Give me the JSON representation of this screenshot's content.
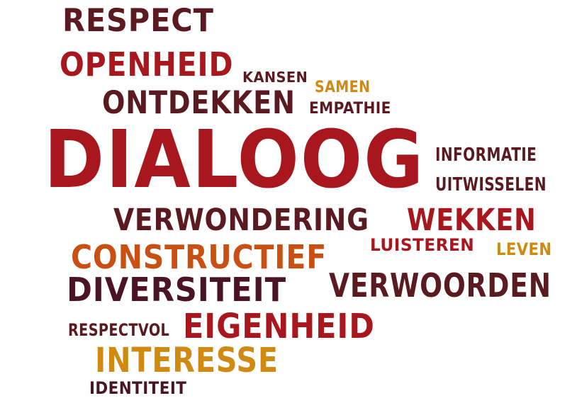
{
  "palette": {
    "dark": "#5a1a1f",
    "red": "#a8171d",
    "orange": "#c94f12",
    "gold": "#cf8a12",
    "plum": "#4a1426"
  },
  "words": [
    {
      "id": "respect",
      "text": "RESPECT",
      "color": "dark"
    },
    {
      "id": "openheid",
      "text": "OPENHEID",
      "color": "red"
    },
    {
      "id": "kansen",
      "text": "KANSEN",
      "color": "dark"
    },
    {
      "id": "samen",
      "text": "SAMEN",
      "color": "gold"
    },
    {
      "id": "ontdekken",
      "text": "ONTDEKKEN",
      "color": "dark"
    },
    {
      "id": "empathie",
      "text": "EMPATHIE",
      "color": "dark"
    },
    {
      "id": "dialoog",
      "text": "DIALOOG",
      "color": "red"
    },
    {
      "id": "informatie",
      "text": "INFORMATIE",
      "color": "dark"
    },
    {
      "id": "uitwisselen",
      "text": "UITWISSELEN",
      "color": "dark"
    },
    {
      "id": "verwondering",
      "text": "VERWONDERING",
      "color": "dark"
    },
    {
      "id": "wekken",
      "text": "WEKKEN",
      "color": "red"
    },
    {
      "id": "constructief",
      "text": "CONSTRUCTIEF",
      "color": "orange"
    },
    {
      "id": "luisteren",
      "text": "LUISTEREN",
      "color": "red"
    },
    {
      "id": "leven",
      "text": "LEVEN",
      "color": "gold"
    },
    {
      "id": "diversiteit",
      "text": "DIVERSITEIT",
      "color": "plum"
    },
    {
      "id": "verwoorden",
      "text": "VERWOORDEN",
      "color": "dark"
    },
    {
      "id": "respectvol",
      "text": "RESPECTVOL",
      "color": "dark"
    },
    {
      "id": "eigenheid",
      "text": "EIGENHEID",
      "color": "red"
    },
    {
      "id": "interesse",
      "text": "INTERESSE",
      "color": "gold"
    },
    {
      "id": "identiteit",
      "text": "IDENTITEIT",
      "color": "plum"
    }
  ]
}
